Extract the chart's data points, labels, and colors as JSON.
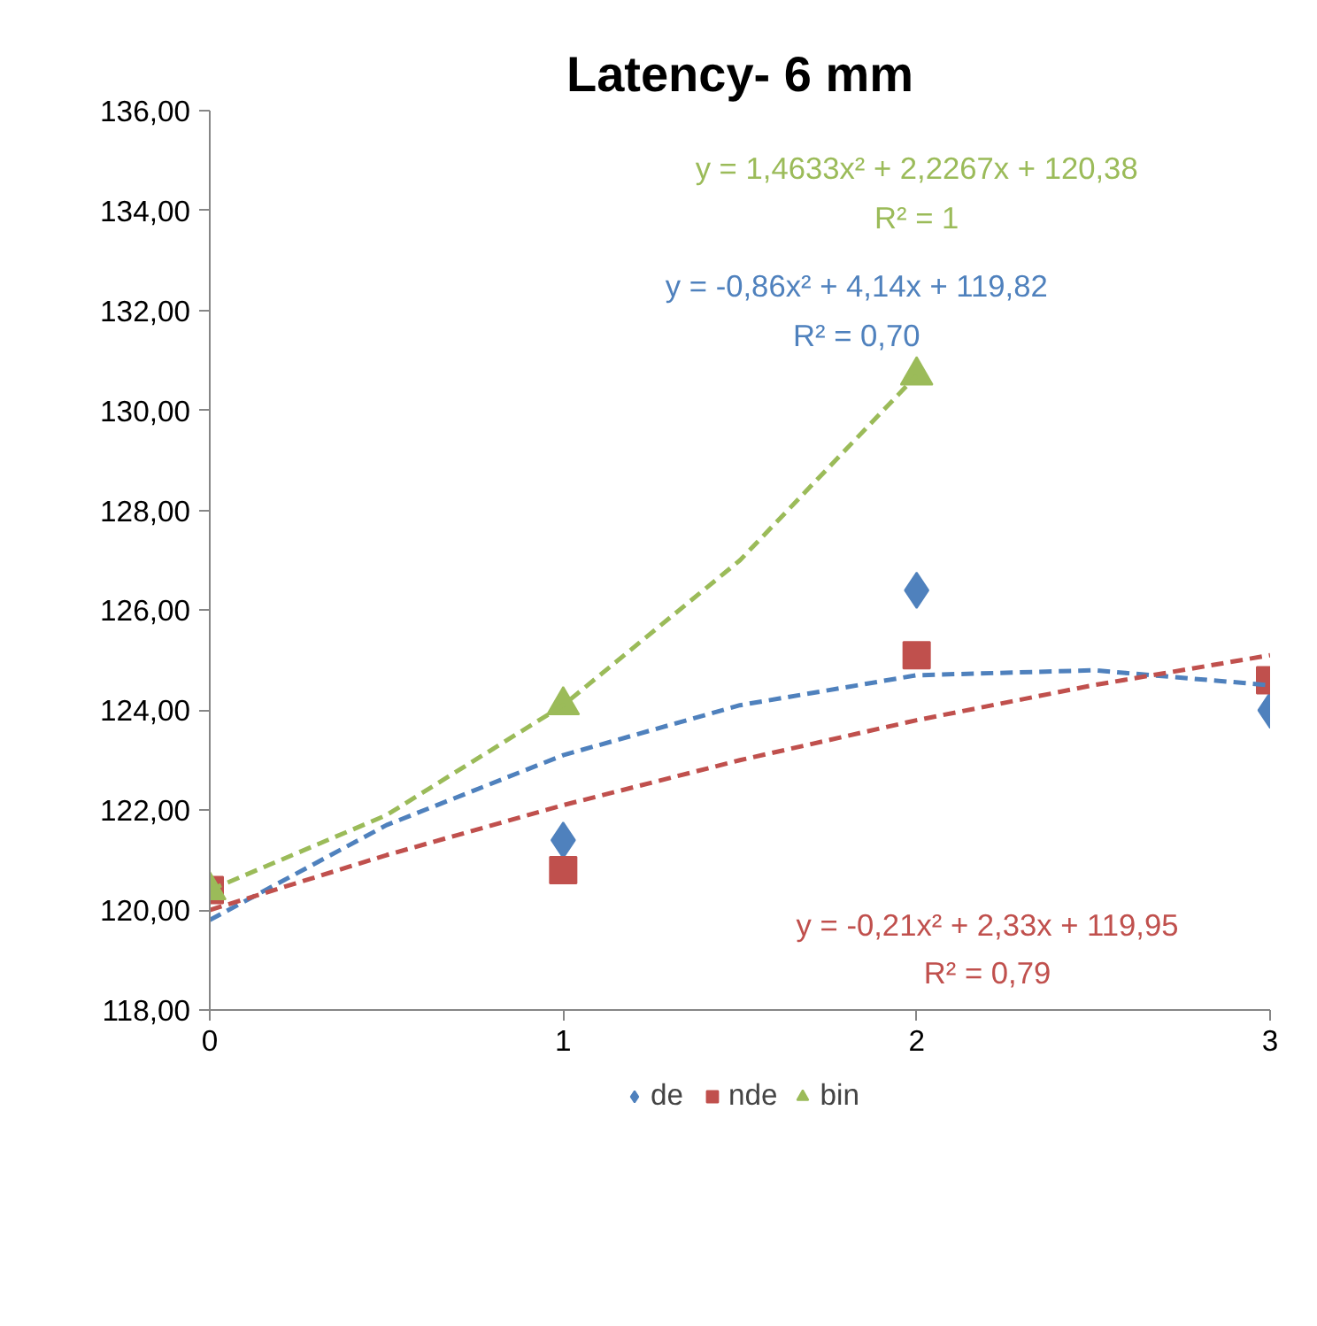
{
  "chart_data": {
    "type": "scatter",
    "title": "Latency- 6 mm",
    "x": [
      0,
      1,
      2,
      3
    ],
    "xlim": [
      0,
      3
    ],
    "xticks": [
      0,
      1,
      2,
      3
    ],
    "ylim": [
      118,
      136
    ],
    "yticks": [
      {
        "value": 118,
        "label": "118,00"
      },
      {
        "value": 120,
        "label": "120,00"
      },
      {
        "value": 122,
        "label": "122,00"
      },
      {
        "value": 124,
        "label": "124,00"
      },
      {
        "value": 126,
        "label": "126,00"
      },
      {
        "value": 128,
        "label": "128,00"
      },
      {
        "value": 130,
        "label": "130,00"
      },
      {
        "value": 132,
        "label": "132,00"
      },
      {
        "value": 134,
        "label": "134,00"
      },
      {
        "value": 136,
        "label": "136,00"
      }
    ],
    "grid": false,
    "legend": "bottom",
    "series": [
      {
        "name": "de",
        "color": "#4f81bd",
        "marker": "diamond",
        "values": [
          null,
          121.4,
          126.4,
          124.0
        ]
      },
      {
        "name": "nde",
        "color": "#c0504d",
        "marker": "square",
        "values": [
          120.4,
          120.8,
          125.1,
          124.6
        ]
      },
      {
        "name": "bin",
        "color": "#9bbb59",
        "marker": "triangle",
        "x": [
          0,
          1,
          2
        ],
        "values": [
          120.4,
          124.1,
          130.7
        ]
      },
      {
        "type": "line",
        "line_style": "dashed",
        "color": "#9bbb59",
        "x": [
          0,
          0.5,
          1,
          1.5,
          2
        ],
        "values": [
          120.4,
          121.9,
          124.1,
          127.0,
          130.7
        ]
      },
      {
        "type": "line",
        "line_style": "dashed",
        "color": "#4f81bd",
        "x": [
          0,
          0.5,
          1,
          1.5,
          2,
          2.5,
          3
        ],
        "values": [
          119.8,
          121.7,
          123.1,
          124.1,
          124.7,
          124.8,
          124.5
        ]
      },
      {
        "type": "line",
        "line_style": "dashed",
        "color": "#c0504d",
        "x": [
          0,
          0.5,
          1,
          1.5,
          2,
          2.5,
          3
        ],
        "values": [
          120.0,
          121.1,
          122.1,
          123.0,
          123.8,
          124.5,
          125.1
        ]
      }
    ],
    "annotations": [
      "y = 1,4633x² + 2,2267x + 120,38",
      "R² = 1",
      "y = -0,86x² + 4,14x + 119,82",
      "R² = 0,70",
      "y = -0,21x² + 2,33x + 119,95",
      "R² = 0,79"
    ]
  }
}
